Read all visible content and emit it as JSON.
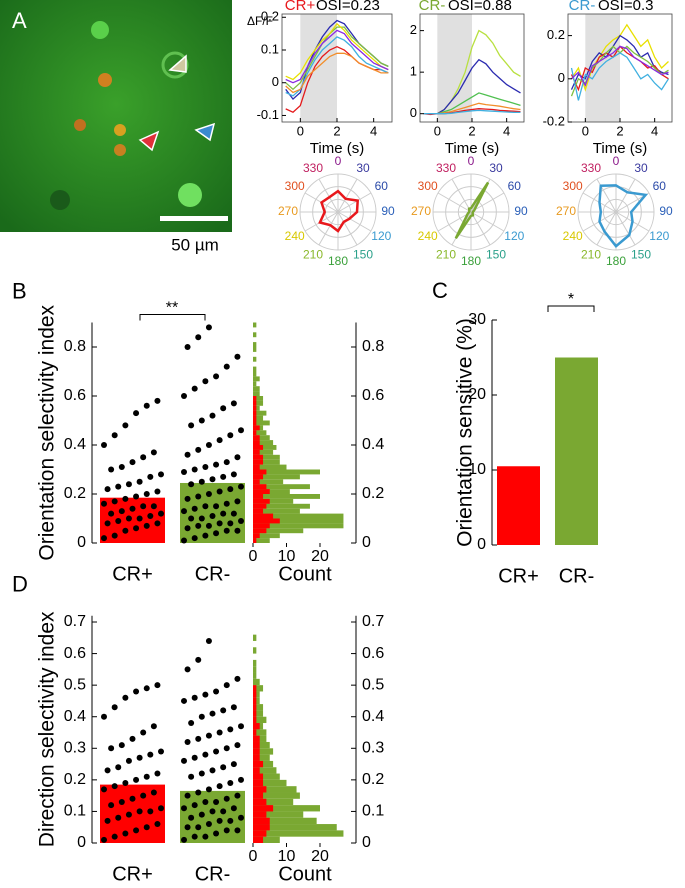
{
  "image": {
    "panel": "A",
    "scale_label": "50 µm"
  },
  "chart_data": [
    {
      "type": "line",
      "group": "CR+",
      "group_color": "#e8181c",
      "title": "OSI=0.23",
      "ylabel": "ΔF/F",
      "xlabel": "Time (s)",
      "stim": [
        0,
        2
      ],
      "xlim": [
        -1,
        5
      ],
      "xticks": [
        0,
        2,
        4
      ],
      "ylim": [
        -0.12,
        0.21
      ],
      "yticks": [
        -0.1,
        0,
        0.1,
        0.2
      ],
      "x": [
        -0.8,
        -0.4,
        0,
        0.4,
        0.8,
        1.2,
        1.6,
        2,
        2.4,
        2.8,
        3.2,
        3.6,
        4,
        4.4,
        4.8
      ],
      "series": [
        {
          "color": "#2b2bb0",
          "values": [
            -0.02,
            -0.05,
            -0.03,
            0.05,
            0.1,
            0.14,
            0.17,
            0.19,
            0.18,
            0.15,
            0.12,
            0.1,
            0.08,
            0.06,
            0.05
          ]
        },
        {
          "color": "#e41a1c",
          "values": [
            -0.08,
            -0.09,
            -0.07,
            0.0,
            0.05,
            0.08,
            0.1,
            0.11,
            0.1,
            0.08,
            0.06,
            0.05,
            0.04,
            0.04,
            0.03
          ]
        },
        {
          "color": "#7fbf3f",
          "values": [
            0,
            -0.02,
            0,
            0.04,
            0.08,
            0.12,
            0.15,
            0.17,
            0.17,
            0.14,
            0.12,
            0.1,
            0.08,
            0.06,
            0.05
          ]
        },
        {
          "color": "#e8e000",
          "values": [
            0.02,
            0.01,
            0.03,
            0.07,
            0.1,
            0.13,
            0.15,
            0.18,
            0.16,
            0.13,
            0.11,
            0.09,
            0.07,
            0.05,
            0.04
          ]
        },
        {
          "color": "#40b0e0",
          "values": [
            -0.03,
            -0.04,
            -0.02,
            0.03,
            0.07,
            0.1,
            0.12,
            0.14,
            0.13,
            0.11,
            0.08,
            0.06,
            0.05,
            0.04,
            0.03
          ]
        },
        {
          "color": "#f28e2b",
          "values": [
            -0.01,
            -0.03,
            -0.02,
            0.02,
            0.04,
            0.06,
            0.08,
            0.09,
            0.09,
            0.08,
            0.06,
            0.05,
            0.04,
            0.03,
            0.03
          ]
        },
        {
          "color": "#8a2be2",
          "values": [
            0.01,
            0,
            0.01,
            0.05,
            0.09,
            0.12,
            0.14,
            0.16,
            0.15,
            0.12,
            0.1,
            0.08,
            0.06,
            0.05,
            0.04
          ]
        }
      ]
    },
    {
      "type": "line",
      "group": "CR-",
      "group_color": "#7aa832",
      "title": "OSI=0.88",
      "xlabel": "Time (s)",
      "stim": [
        0,
        2
      ],
      "xlim": [
        -1,
        5
      ],
      "xticks": [
        0,
        2,
        4
      ],
      "ylim": [
        -0.2,
        2.4
      ],
      "yticks": [
        0,
        1,
        2
      ],
      "x": [
        -0.8,
        -0.4,
        0,
        0.4,
        0.8,
        1.2,
        1.6,
        2,
        2.4,
        2.8,
        3.2,
        3.6,
        4,
        4.4,
        4.8
      ],
      "series": [
        {
          "color": "#b8e040",
          "values": [
            0,
            0,
            0,
            0.1,
            0.3,
            0.6,
            1.0,
            1.6,
            2.0,
            1.9,
            1.7,
            1.4,
            1.2,
            1.0,
            0.9
          ]
        },
        {
          "color": "#2b2bb0",
          "values": [
            0,
            0,
            0,
            0.1,
            0.3,
            0.5,
            0.8,
            1.1,
            1.3,
            1.2,
            1.0,
            0.85,
            0.7,
            0.6,
            0.5
          ]
        },
        {
          "color": "#50c050",
          "values": [
            0,
            0,
            0,
            0.05,
            0.1,
            0.2,
            0.3,
            0.4,
            0.5,
            0.45,
            0.4,
            0.35,
            0.3,
            0.25,
            0.2
          ]
        },
        {
          "color": "#f28e2b",
          "values": [
            0,
            0,
            0,
            0.02,
            0.05,
            0.1,
            0.15,
            0.2,
            0.25,
            0.22,
            0.2,
            0.18,
            0.15,
            0.12,
            0.1
          ]
        },
        {
          "color": "#e41a1c",
          "values": [
            0,
            -0.02,
            0,
            0,
            0.02,
            0.05,
            0.08,
            0.1,
            0.12,
            0.11,
            0.1,
            0.08,
            0.07,
            0.06,
            0.05
          ]
        },
        {
          "color": "#40b0e0",
          "values": [
            0,
            0,
            0,
            0,
            0.01,
            0.03,
            0.05,
            0.07,
            0.08,
            0.07,
            0.06,
            0.05,
            0.04,
            0.03,
            0.03
          ]
        }
      ]
    },
    {
      "type": "line",
      "group": "CR-",
      "group_color": "#3a9ad0",
      "title": "OSI=0.3",
      "xlabel": "Time (s)",
      "stim": [
        0,
        2
      ],
      "xlim": [
        -1,
        5
      ],
      "xticks": [
        0,
        2,
        4
      ],
      "ylim": [
        -0.2,
        0.3
      ],
      "yticks": [
        -0.2,
        0,
        0.2
      ],
      "x": [
        -0.8,
        -0.4,
        0,
        0.4,
        0.8,
        1.2,
        1.6,
        2,
        2.4,
        2.8,
        3.2,
        3.6,
        4,
        4.4,
        4.8
      ],
      "series": [
        {
          "color": "#e8e000",
          "values": [
            0,
            0.05,
            -0.05,
            0.05,
            0.1,
            0.15,
            0.18,
            0.2,
            0.25,
            0.2,
            0.15,
            0.18,
            0.1,
            0.05,
            0.08
          ]
        },
        {
          "color": "#2b2bb0",
          "values": [
            -0.05,
            0.02,
            0,
            0.08,
            0.12,
            0.1,
            0.15,
            0.2,
            0.18,
            0.15,
            0.1,
            0.12,
            0.05,
            0.03,
            0.02
          ]
        },
        {
          "color": "#e41a1c",
          "values": [
            0.02,
            -0.05,
            0.05,
            0.03,
            0.1,
            0.12,
            0.1,
            0.15,
            0.12,
            0.1,
            0.08,
            0.05,
            0.06,
            0.02,
            0.0
          ]
        },
        {
          "color": "#7fbf3f",
          "values": [
            -0.08,
            0,
            -0.02,
            0.05,
            0.08,
            0.12,
            0.15,
            0.12,
            0.15,
            0.12,
            0.1,
            0.08,
            0.05,
            0.02,
            0.04
          ]
        },
        {
          "color": "#40b0e0",
          "values": [
            0.05,
            -0.1,
            0.02,
            0,
            0.05,
            0.08,
            0.1,
            0.12,
            0.1,
            0.05,
            0.0,
            0.02,
            -0.02,
            -0.05,
            0.0
          ]
        },
        {
          "color": "#8a2be2",
          "values": [
            0,
            0.03,
            -0.03,
            0.06,
            0.08,
            0.1,
            0.12,
            0.15,
            0.14,
            0.1,
            0.08,
            0.06,
            0.04,
            0.02,
            0.03
          ]
        }
      ]
    },
    {
      "type": "polar",
      "color": "#e8181c",
      "rlim": [
        0,
        1
      ],
      "angles": [
        0,
        30,
        60,
        90,
        120,
        150,
        180,
        210,
        240,
        270,
        300,
        330
      ],
      "angle_colors": [
        "#8b1a8b",
        "#3a3a9e",
        "#2a4aa8",
        "#2a5fb8",
        "#3a9ad0",
        "#2aa08a",
        "#3aa03a",
        "#8ab82a",
        "#d8c800",
        "#e89a20",
        "#e05020",
        "#c02060"
      ],
      "values": [
        0.55,
        0.4,
        0.6,
        0.5,
        0.35,
        0.3,
        0.5,
        0.4,
        0.55,
        0.35,
        0.5,
        0.45
      ]
    },
    {
      "type": "polar",
      "color": "#7aa832",
      "rlim": [
        0,
        1
      ],
      "angles": [
        0,
        30,
        60,
        90,
        120,
        150,
        180,
        210,
        240,
        270,
        300,
        330
      ],
      "angle_colors": [
        "#8b1a8b",
        "#3a3a9e",
        "#2a4aa8",
        "#2a5fb8",
        "#3a9ad0",
        "#2aa08a",
        "#3aa03a",
        "#8ab82a",
        "#d8c800",
        "#e89a20",
        "#e05020",
        "#c02060"
      ],
      "values": [
        0.1,
        0.9,
        0.1,
        0.05,
        0.05,
        0.1,
        0.1,
        0.8,
        0.1,
        0.05,
        0.05,
        0.1
      ]
    },
    {
      "type": "polar",
      "color": "#3a9ad0",
      "rlim": [
        0,
        1
      ],
      "angles": [
        0,
        30,
        60,
        90,
        120,
        150,
        180,
        210,
        240,
        270,
        300,
        330
      ],
      "angle_colors": [
        "#8b1a8b",
        "#3a3a9e",
        "#2a4aa8",
        "#2a5fb8",
        "#3a9ad0",
        "#2aa08a",
        "#3aa03a",
        "#8ab82a",
        "#d8c800",
        "#e89a20",
        "#e05020",
        "#c02060"
      ],
      "values": [
        0.7,
        0.6,
        0.9,
        0.4,
        0.5,
        0.7,
        0.9,
        0.6,
        0.5,
        0.4,
        0.5,
        0.8
      ]
    },
    {
      "type": "strip",
      "panel": "B",
      "ylabel": "Orientation selectivity index",
      "significance": "**",
      "categories": [
        "CR+",
        "CR-"
      ],
      "colors": [
        "#ff0000",
        "#7aa832"
      ],
      "ylim": [
        0,
        0.9
      ],
      "yticks": [
        0,
        0.2,
        0.4,
        0.6,
        0.8
      ],
      "means": [
        0.185,
        0.245
      ],
      "points": [
        [
          0.02,
          0.03,
          0.05,
          0.06,
          0.07,
          0.08,
          0.08,
          0.09,
          0.1,
          0.1,
          0.11,
          0.12,
          0.12,
          0.13,
          0.14,
          0.15,
          0.15,
          0.16,
          0.17,
          0.18,
          0.19,
          0.2,
          0.21,
          0.22,
          0.23,
          0.24,
          0.25,
          0.27,
          0.28,
          0.3,
          0.31,
          0.33,
          0.35,
          0.37,
          0.4,
          0.44,
          0.48,
          0.53,
          0.56,
          0.58
        ],
        [
          0.01,
          0.02,
          0.03,
          0.04,
          0.05,
          0.05,
          0.06,
          0.07,
          0.07,
          0.08,
          0.08,
          0.09,
          0.1,
          0.1,
          0.11,
          0.12,
          0.12,
          0.13,
          0.14,
          0.15,
          0.15,
          0.16,
          0.17,
          0.18,
          0.19,
          0.2,
          0.21,
          0.22,
          0.23,
          0.24,
          0.25,
          0.26,
          0.27,
          0.28,
          0.29,
          0.3,
          0.31,
          0.32,
          0.33,
          0.35,
          0.36,
          0.38,
          0.4,
          0.42,
          0.44,
          0.46,
          0.48,
          0.5,
          0.52,
          0.55,
          0.57,
          0.6,
          0.63,
          0.66,
          0.68,
          0.72,
          0.76,
          0.8,
          0.84,
          0.88
        ]
      ],
      "hist": {
        "xlabel": "Count",
        "xlim": [
          0,
          30
        ],
        "xticks": [
          0,
          10,
          20
        ],
        "bins": [
          0,
          0.02,
          0.04,
          0.06,
          0.08,
          0.1,
          0.12,
          0.14,
          0.16,
          0.18,
          0.2,
          0.22,
          0.24,
          0.26,
          0.28,
          0.3,
          0.32,
          0.34,
          0.36,
          0.38,
          0.4,
          0.42,
          0.44,
          0.46,
          0.48,
          0.5,
          0.52,
          0.54,
          0.56,
          0.58,
          0.6,
          0.62,
          0.64,
          0.66,
          0.68,
          0.7,
          0.72,
          0.74,
          0.76,
          0.78,
          0.8,
          0.82,
          0.84,
          0.86,
          0.88,
          0.9
        ],
        "counts": [
          [
            1,
            2,
            4,
            5,
            8,
            6,
            3,
            4,
            5,
            3,
            5,
            4,
            2,
            3,
            4,
            2,
            3,
            3,
            2,
            3,
            2,
            2,
            1,
            2,
            1,
            1,
            1,
            1,
            1,
            1,
            0,
            0,
            0,
            0,
            0,
            0,
            0,
            0,
            0,
            0,
            0,
            0,
            0,
            0,
            0
          ],
          [
            5,
            8,
            15,
            27,
            27,
            27,
            14,
            17,
            12,
            20,
            11,
            17,
            9,
            14,
            20,
            10,
            8,
            8,
            6,
            7,
            6,
            5,
            4,
            3,
            5,
            3,
            4,
            2,
            3,
            3,
            2,
            2,
            1,
            2,
            1,
            1,
            0,
            1,
            0,
            1,
            1,
            0,
            1,
            0,
            1
          ]
        ]
      }
    },
    {
      "type": "bar",
      "panel": "C",
      "ylabel": "Orientation sensitive (%)",
      "significance": "*",
      "categories": [
        "CR+",
        "CR-"
      ],
      "colors": [
        "#ff0000",
        "#7aa832"
      ],
      "values": [
        10.5,
        25
      ],
      "ylim": [
        0,
        30
      ],
      "yticks": [
        0,
        10,
        20,
        30
      ]
    },
    {
      "type": "strip",
      "panel": "D",
      "ylabel": "Direction selectivity index",
      "categories": [
        "CR+",
        "CR-"
      ],
      "colors": [
        "#ff0000",
        "#7aa832"
      ],
      "ylim": [
        0,
        0.72
      ],
      "yticks": [
        0,
        0.1,
        0.2,
        0.3,
        0.4,
        0.5,
        0.6,
        0.7
      ],
      "means": [
        0.185,
        0.165
      ],
      "points": [
        [
          0.01,
          0.02,
          0.03,
          0.04,
          0.05,
          0.06,
          0.07,
          0.08,
          0.09,
          0.1,
          0.1,
          0.11,
          0.12,
          0.13,
          0.14,
          0.15,
          0.16,
          0.17,
          0.18,
          0.19,
          0.2,
          0.21,
          0.22,
          0.23,
          0.24,
          0.26,
          0.27,
          0.28,
          0.29,
          0.3,
          0.31,
          0.33,
          0.35,
          0.37,
          0.4,
          0.43,
          0.46,
          0.48,
          0.49,
          0.5
        ],
        [
          0.01,
          0.02,
          0.02,
          0.03,
          0.04,
          0.04,
          0.05,
          0.05,
          0.06,
          0.07,
          0.07,
          0.08,
          0.08,
          0.09,
          0.1,
          0.1,
          0.11,
          0.11,
          0.12,
          0.13,
          0.13,
          0.14,
          0.15,
          0.15,
          0.16,
          0.17,
          0.18,
          0.19,
          0.2,
          0.21,
          0.22,
          0.23,
          0.24,
          0.25,
          0.26,
          0.27,
          0.28,
          0.29,
          0.3,
          0.31,
          0.32,
          0.33,
          0.34,
          0.35,
          0.36,
          0.37,
          0.38,
          0.4,
          0.41,
          0.42,
          0.43,
          0.45,
          0.46,
          0.47,
          0.48,
          0.5,
          0.52,
          0.55,
          0.58,
          0.64
        ]
      ],
      "hist": {
        "xlabel": "Count",
        "xlim": [
          0,
          30
        ],
        "xticks": [
          0,
          10,
          20
        ],
        "bins": [
          0,
          0.02,
          0.04,
          0.06,
          0.08,
          0.1,
          0.12,
          0.14,
          0.16,
          0.18,
          0.2,
          0.22,
          0.24,
          0.26,
          0.28,
          0.3,
          0.32,
          0.34,
          0.36,
          0.38,
          0.4,
          0.42,
          0.44,
          0.46,
          0.48,
          0.5,
          0.52,
          0.54,
          0.56,
          0.58,
          0.6,
          0.62,
          0.64,
          0.66
        ],
        "counts": [
          [
            3,
            4,
            5,
            5,
            4,
            6,
            4,
            3,
            4,
            3,
            3,
            2,
            3,
            2,
            2,
            2,
            2,
            1,
            2,
            1,
            1,
            1,
            1,
            1,
            1,
            0,
            0,
            0,
            0,
            0,
            0,
            0,
            0
          ],
          [
            8,
            27,
            25,
            19,
            15,
            20,
            12,
            14,
            13,
            10,
            8,
            7,
            6,
            5,
            6,
            5,
            4,
            4,
            3,
            4,
            3,
            3,
            2,
            2,
            3,
            2,
            1,
            1,
            1,
            0,
            1,
            0,
            1
          ]
        ]
      }
    }
  ]
}
